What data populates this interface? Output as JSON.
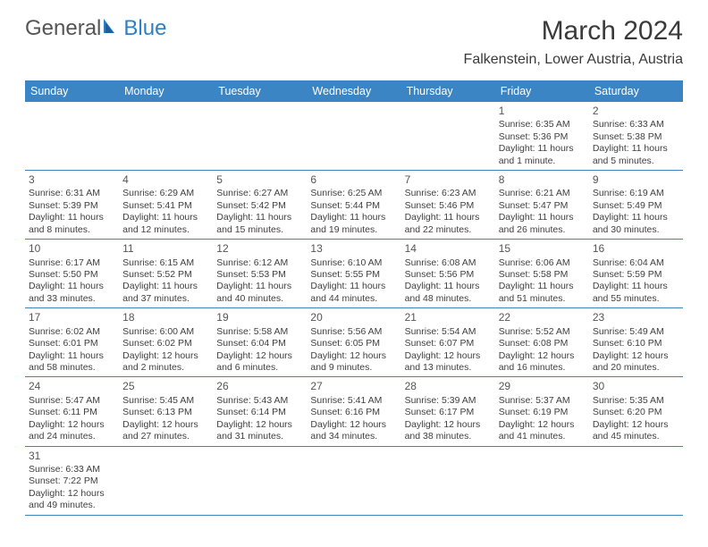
{
  "brand": {
    "general": "General",
    "blue": "Blue"
  },
  "title": "March 2024",
  "location": "Falkenstein, Lower Austria, Austria",
  "colors": {
    "header_bg": "#3b85c5",
    "header_text": "#ffffff",
    "brand_accent": "#2f7fc2",
    "text": "#404040",
    "border": "#3b85c5"
  },
  "weekdays": [
    "Sunday",
    "Monday",
    "Tuesday",
    "Wednesday",
    "Thursday",
    "Friday",
    "Saturday"
  ],
  "weeks": [
    [
      null,
      null,
      null,
      null,
      null,
      {
        "n": "1",
        "sr": "Sunrise: 6:35 AM",
        "ss": "Sunset: 5:36 PM",
        "d1": "Daylight: 11 hours",
        "d2": "and 1 minute."
      },
      {
        "n": "2",
        "sr": "Sunrise: 6:33 AM",
        "ss": "Sunset: 5:38 PM",
        "d1": "Daylight: 11 hours",
        "d2": "and 5 minutes."
      }
    ],
    [
      {
        "n": "3",
        "sr": "Sunrise: 6:31 AM",
        "ss": "Sunset: 5:39 PM",
        "d1": "Daylight: 11 hours",
        "d2": "and 8 minutes."
      },
      {
        "n": "4",
        "sr": "Sunrise: 6:29 AM",
        "ss": "Sunset: 5:41 PM",
        "d1": "Daylight: 11 hours",
        "d2": "and 12 minutes."
      },
      {
        "n": "5",
        "sr": "Sunrise: 6:27 AM",
        "ss": "Sunset: 5:42 PM",
        "d1": "Daylight: 11 hours",
        "d2": "and 15 minutes."
      },
      {
        "n": "6",
        "sr": "Sunrise: 6:25 AM",
        "ss": "Sunset: 5:44 PM",
        "d1": "Daylight: 11 hours",
        "d2": "and 19 minutes."
      },
      {
        "n": "7",
        "sr": "Sunrise: 6:23 AM",
        "ss": "Sunset: 5:46 PM",
        "d1": "Daylight: 11 hours",
        "d2": "and 22 minutes."
      },
      {
        "n": "8",
        "sr": "Sunrise: 6:21 AM",
        "ss": "Sunset: 5:47 PM",
        "d1": "Daylight: 11 hours",
        "d2": "and 26 minutes."
      },
      {
        "n": "9",
        "sr": "Sunrise: 6:19 AM",
        "ss": "Sunset: 5:49 PM",
        "d1": "Daylight: 11 hours",
        "d2": "and 30 minutes."
      }
    ],
    [
      {
        "n": "10",
        "sr": "Sunrise: 6:17 AM",
        "ss": "Sunset: 5:50 PM",
        "d1": "Daylight: 11 hours",
        "d2": "and 33 minutes."
      },
      {
        "n": "11",
        "sr": "Sunrise: 6:15 AM",
        "ss": "Sunset: 5:52 PM",
        "d1": "Daylight: 11 hours",
        "d2": "and 37 minutes."
      },
      {
        "n": "12",
        "sr": "Sunrise: 6:12 AM",
        "ss": "Sunset: 5:53 PM",
        "d1": "Daylight: 11 hours",
        "d2": "and 40 minutes."
      },
      {
        "n": "13",
        "sr": "Sunrise: 6:10 AM",
        "ss": "Sunset: 5:55 PM",
        "d1": "Daylight: 11 hours",
        "d2": "and 44 minutes."
      },
      {
        "n": "14",
        "sr": "Sunrise: 6:08 AM",
        "ss": "Sunset: 5:56 PM",
        "d1": "Daylight: 11 hours",
        "d2": "and 48 minutes."
      },
      {
        "n": "15",
        "sr": "Sunrise: 6:06 AM",
        "ss": "Sunset: 5:58 PM",
        "d1": "Daylight: 11 hours",
        "d2": "and 51 minutes."
      },
      {
        "n": "16",
        "sr": "Sunrise: 6:04 AM",
        "ss": "Sunset: 5:59 PM",
        "d1": "Daylight: 11 hours",
        "d2": "and 55 minutes."
      }
    ],
    [
      {
        "n": "17",
        "sr": "Sunrise: 6:02 AM",
        "ss": "Sunset: 6:01 PM",
        "d1": "Daylight: 11 hours",
        "d2": "and 58 minutes."
      },
      {
        "n": "18",
        "sr": "Sunrise: 6:00 AM",
        "ss": "Sunset: 6:02 PM",
        "d1": "Daylight: 12 hours",
        "d2": "and 2 minutes."
      },
      {
        "n": "19",
        "sr": "Sunrise: 5:58 AM",
        "ss": "Sunset: 6:04 PM",
        "d1": "Daylight: 12 hours",
        "d2": "and 6 minutes."
      },
      {
        "n": "20",
        "sr": "Sunrise: 5:56 AM",
        "ss": "Sunset: 6:05 PM",
        "d1": "Daylight: 12 hours",
        "d2": "and 9 minutes."
      },
      {
        "n": "21",
        "sr": "Sunrise: 5:54 AM",
        "ss": "Sunset: 6:07 PM",
        "d1": "Daylight: 12 hours",
        "d2": "and 13 minutes."
      },
      {
        "n": "22",
        "sr": "Sunrise: 5:52 AM",
        "ss": "Sunset: 6:08 PM",
        "d1": "Daylight: 12 hours",
        "d2": "and 16 minutes."
      },
      {
        "n": "23",
        "sr": "Sunrise: 5:49 AM",
        "ss": "Sunset: 6:10 PM",
        "d1": "Daylight: 12 hours",
        "d2": "and 20 minutes."
      }
    ],
    [
      {
        "n": "24",
        "sr": "Sunrise: 5:47 AM",
        "ss": "Sunset: 6:11 PM",
        "d1": "Daylight: 12 hours",
        "d2": "and 24 minutes."
      },
      {
        "n": "25",
        "sr": "Sunrise: 5:45 AM",
        "ss": "Sunset: 6:13 PM",
        "d1": "Daylight: 12 hours",
        "d2": "and 27 minutes."
      },
      {
        "n": "26",
        "sr": "Sunrise: 5:43 AM",
        "ss": "Sunset: 6:14 PM",
        "d1": "Daylight: 12 hours",
        "d2": "and 31 minutes."
      },
      {
        "n": "27",
        "sr": "Sunrise: 5:41 AM",
        "ss": "Sunset: 6:16 PM",
        "d1": "Daylight: 12 hours",
        "d2": "and 34 minutes."
      },
      {
        "n": "28",
        "sr": "Sunrise: 5:39 AM",
        "ss": "Sunset: 6:17 PM",
        "d1": "Daylight: 12 hours",
        "d2": "and 38 minutes."
      },
      {
        "n": "29",
        "sr": "Sunrise: 5:37 AM",
        "ss": "Sunset: 6:19 PM",
        "d1": "Daylight: 12 hours",
        "d2": "and 41 minutes."
      },
      {
        "n": "30",
        "sr": "Sunrise: 5:35 AM",
        "ss": "Sunset: 6:20 PM",
        "d1": "Daylight: 12 hours",
        "d2": "and 45 minutes."
      }
    ],
    [
      {
        "n": "31",
        "sr": "Sunrise: 6:33 AM",
        "ss": "Sunset: 7:22 PM",
        "d1": "Daylight: 12 hours",
        "d2": "and 49 minutes."
      },
      null,
      null,
      null,
      null,
      null,
      null
    ]
  ]
}
